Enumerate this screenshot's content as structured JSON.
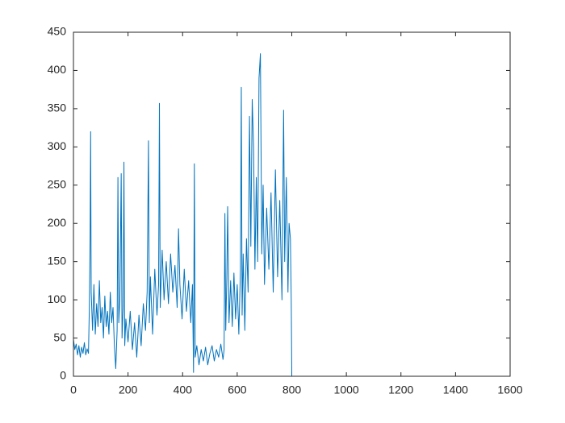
{
  "chart_data": {
    "type": "line",
    "color": "#0072bd",
    "x": [
      0,
      5,
      10,
      15,
      20,
      25,
      30,
      35,
      40,
      45,
      50,
      55,
      58,
      61,
      63,
      65,
      70,
      75,
      80,
      85,
      90,
      95,
      100,
      105,
      110,
      115,
      120,
      125,
      130,
      135,
      140,
      145,
      150,
      155,
      160,
      163,
      166,
      170,
      175,
      178,
      182,
      185,
      188,
      192,
      200,
      208,
      216,
      224,
      232,
      240,
      248,
      256,
      264,
      270,
      275,
      278,
      282,
      290,
      298,
      306,
      312,
      315,
      318,
      325,
      332,
      340,
      348,
      356,
      364,
      372,
      380,
      385,
      390,
      398,
      406,
      414,
      422,
      430,
      436,
      440,
      443,
      446,
      452,
      460,
      468,
      476,
      484,
      492,
      500,
      508,
      516,
      524,
      532,
      540,
      548,
      552,
      555,
      558,
      562,
      565,
      570,
      576,
      582,
      588,
      594,
      600,
      606,
      612,
      615,
      618,
      622,
      628,
      634,
      640,
      645,
      650,
      655,
      660,
      665,
      670,
      675,
      680,
      685,
      690,
      695,
      700,
      708,
      716,
      724,
      732,
      740,
      748,
      756,
      764,
      770,
      774,
      780,
      786,
      790,
      795,
      798,
      800,
      1600
    ],
    "values": [
      48,
      35,
      42,
      28,
      40,
      25,
      38,
      30,
      44,
      28,
      36,
      30,
      85,
      180,
      320,
      110,
      60,
      120,
      55,
      95,
      65,
      125,
      70,
      90,
      50,
      105,
      65,
      85,
      55,
      110,
      70,
      90,
      40,
      10,
      60,
      260,
      70,
      100,
      265,
      50,
      90,
      280,
      40,
      75,
      45,
      85,
      35,
      70,
      25,
      80,
      40,
      95,
      60,
      110,
      308,
      70,
      130,
      55,
      140,
      80,
      120,
      357,
      90,
      165,
      100,
      150,
      95,
      160,
      110,
      145,
      90,
      193,
      120,
      75,
      140,
      85,
      125,
      70,
      120,
      5,
      278,
      25,
      40,
      15,
      35,
      20,
      38,
      15,
      30,
      40,
      20,
      35,
      25,
      42,
      22,
      35,
      213,
      60,
      130,
      222,
      70,
      125,
      65,
      135,
      75,
      120,
      55,
      140,
      378,
      80,
      160,
      60,
      180,
      110,
      340,
      170,
      362,
      300,
      140,
      260,
      150,
      390,
      422,
      160,
      250,
      120,
      220,
      140,
      240,
      110,
      270,
      130,
      230,
      100,
      348,
      150,
      260,
      110,
      200,
      180,
      100,
      0,
      0
    ],
    "xlim": [
      0,
      1600
    ],
    "xticks": [
      0,
      200,
      400,
      600,
      800,
      1000,
      1200,
      1400,
      1600
    ],
    "ylim": [
      0,
      450
    ],
    "yticks": [
      0,
      50,
      100,
      150,
      200,
      250,
      300,
      350,
      400,
      450
    ]
  }
}
